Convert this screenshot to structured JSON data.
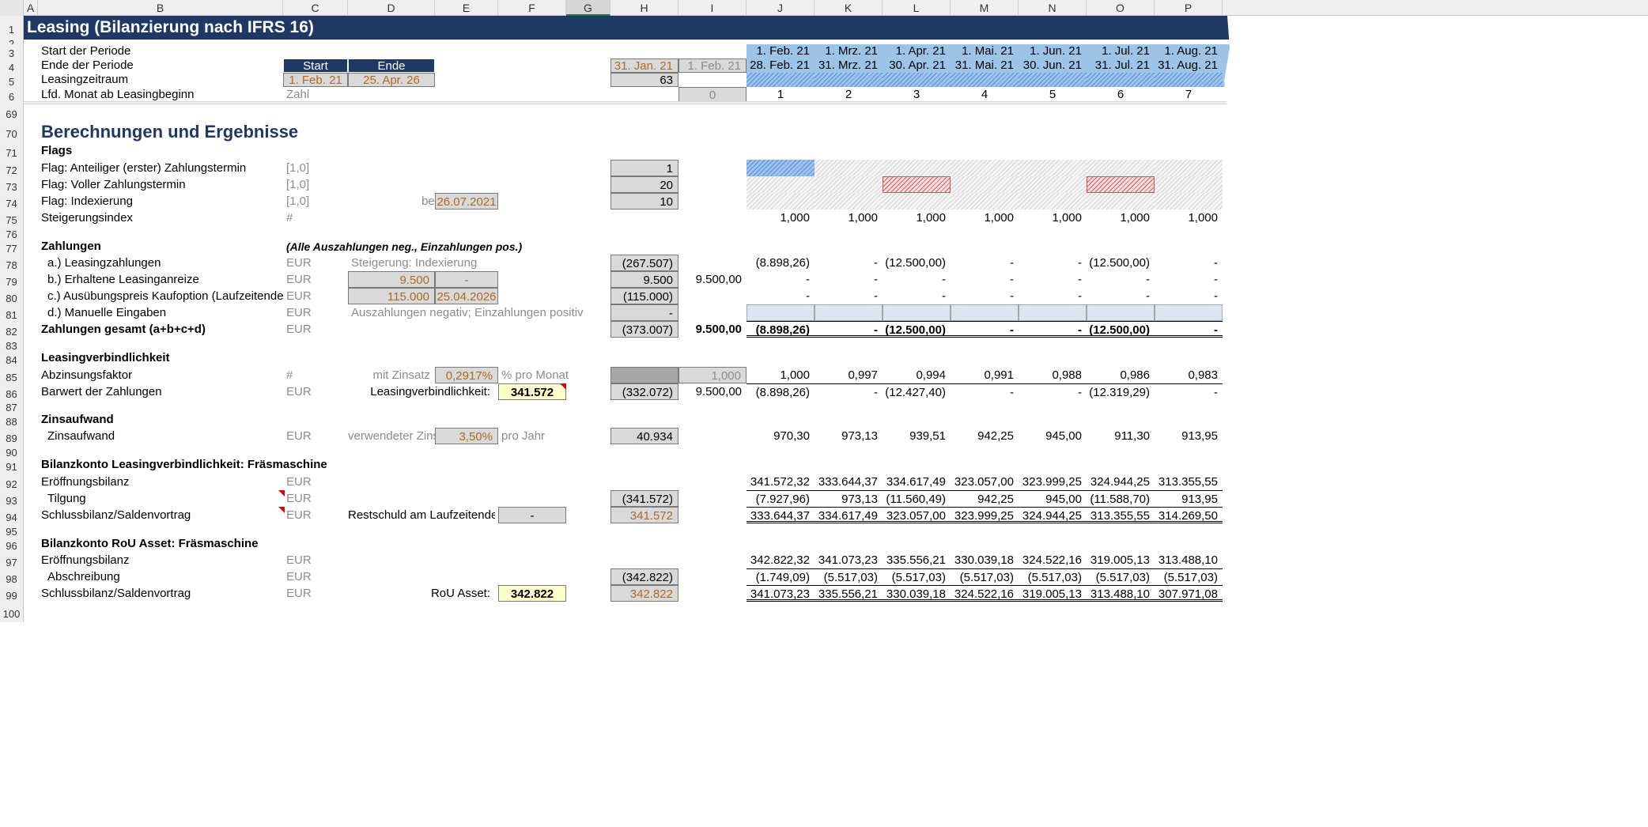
{
  "columns": [
    "A",
    "B",
    "C",
    "D",
    "E",
    "F",
    "G",
    "H",
    "I",
    "J",
    "K",
    "L",
    "M",
    "N",
    "O",
    "P"
  ],
  "title": "Leasing (Bilanzierung nach IFRS 16)",
  "rows": {
    "r1": "1",
    "r2": "2",
    "r3": "3",
    "r4": "4",
    "r5": "5",
    "r6": "6",
    "r69": "69",
    "r70": "70",
    "r71": "71",
    "r72": "72",
    "r73": "73",
    "r74": "74",
    "r75": "75",
    "r76": "76",
    "r77": "77",
    "r78": "78",
    "r79": "79",
    "r80": "80",
    "r81": "81",
    "r82": "82",
    "r83": "83",
    "r84": "84",
    "r85": "85",
    "r86": "86",
    "r87": "87",
    "r88": "88",
    "r89": "89",
    "r90": "90",
    "r91": "91",
    "r92": "92",
    "r93": "93",
    "r94": "94",
    "r95": "95",
    "r96": "96",
    "r97": "97",
    "r98": "98",
    "r99": "99",
    "r100": "100"
  },
  "header": {
    "start_label": "Start der Periode",
    "end_label": "Ende der Periode",
    "period_label": "Leasingzeitraum",
    "month_label": "Lfd. Monat ab Leasingbeginn",
    "start_btn": "Start",
    "end_btn": "Ende",
    "start_date": "1. Feb. 21",
    "end_date": "25. Apr. 26",
    "zahl": "Zahl",
    "h4": "31. Jan. 21",
    "i4": "1. Feb. 21",
    "h5": "63",
    "i6": "0"
  },
  "timeline": {
    "start": [
      "1. Feb. 21",
      "1. Mrz. 21",
      "1. Apr. 21",
      "1. Mai. 21",
      "1. Jun. 21",
      "1. Jul. 21",
      "1. Aug. 21"
    ],
    "end": [
      "28. Feb. 21",
      "31. Mrz. 21",
      "30. Apr. 21",
      "31. Mai. 21",
      "30. Jun. 21",
      "31. Jul. 21",
      "31. Aug. 21"
    ],
    "month": [
      "1",
      "2",
      "3",
      "4",
      "5",
      "6",
      "7"
    ]
  },
  "section_title": "Berechnungen und Ergebnisse",
  "flags": {
    "title": "Flags",
    "f1": "Flag: Anteiliger (erster) Zahlungstermin",
    "f2": "Flag: Voller Zahlungstermin",
    "f3": "Flag: Indexierung",
    "f4": "Steigerungsindex",
    "unit": "[1,0]",
    "hash": "#",
    "beginning": "beginnend ab",
    "begin_date": "26.07.2021",
    "h72": "1",
    "h73": "20",
    "h74": "10",
    "index": [
      "1,000",
      "1,000",
      "1,000",
      "1,000",
      "1,000",
      "1,000",
      "1,000"
    ]
  },
  "zahlungen": {
    "title": "Zahlungen",
    "note": "(Alle Auszahlungen neg., Einzahlungen pos.)",
    "a": "a.) Leasingzahlungen",
    "b": "b.) Erhaltene Leasinganreize",
    "c": "c.) Ausübungspreis Kaufoption (Laufzeitende)",
    "d": "d.) Manuelle Eingaben",
    "total": "Zahlungen gesamt (a+b+c+d)",
    "eur": "EUR",
    "steigerung": "Steigerung: Indexierung",
    "b_val": "9.500",
    "b_dash": "-",
    "c_val": "115.000",
    "c_date": "25.04.2026",
    "d_note": "Auszahlungen negativ; Einzahlungen positiv",
    "h78": "(267.507)",
    "h79": "9.500",
    "h80": "(115.000)",
    "h81": "-",
    "h82": "(373.007)",
    "i79": "9.500,00",
    "i82": "9.500,00",
    "row78": [
      "(8.898,26)",
      "-",
      "(12.500,00)",
      "-",
      "-",
      "(12.500,00)",
      "-"
    ],
    "row79": [
      "-",
      "-",
      "-",
      "-",
      "-",
      "-",
      "-"
    ],
    "row80": [
      "-",
      "-",
      "-",
      "-",
      "-",
      "-",
      "-"
    ],
    "row82": [
      "(8.898,26)",
      "-",
      "(12.500,00)",
      "-",
      "-",
      "(12.500,00)",
      "-"
    ]
  },
  "liab": {
    "title": "Leasingverbindlichkeit",
    "discount": "Abzinsungsfaktor",
    "pv": "Barwert der Zahlungen",
    "mit_zinsatz": "mit Zinsatz",
    "rate": "0,2917%",
    "pm": "% pro Monat",
    "lv_label": "Leasingverbindlichkeit:",
    "lv_val": "341.572",
    "i85": "1,000",
    "h86": "(332.072)",
    "i86": "9.500,00",
    "row85": [
      "1,000",
      "0,997",
      "0,994",
      "0,991",
      "0,988",
      "0,986",
      "0,983"
    ],
    "row86": [
      "(8.898,26)",
      "-",
      "(12.427,40)",
      "-",
      "-",
      "(12.319,29)",
      "-"
    ]
  },
  "interest": {
    "title": "Zinsaufwand",
    "label": "Zinsaufwand",
    "used": "verwendeter Zinsatz",
    "rate": "3,50%",
    "pa": "pro Jahr",
    "h89": "40.934",
    "row89": [
      "970,30",
      "973,13",
      "939,51",
      "942,25",
      "945,00",
      "911,30",
      "913,95"
    ]
  },
  "account1": {
    "title": "Bilanzkonto Leasingverbindlichkeit: Fräsmaschine",
    "open": "Eröffnungsbilanz",
    "tilgung": "Tilgung",
    "close": "Schlussbilanz/Saldenvortrag",
    "rest": "Restschuld am Laufzeitende:",
    "rest_val": "-",
    "h93": "(341.572)",
    "h94": "341.572",
    "row92": [
      "341.572,32",
      "333.644,37",
      "334.617,49",
      "323.057,00",
      "323.999,25",
      "324.944,25",
      "313.355,55"
    ],
    "row93": [
      "(7.927,96)",
      "973,13",
      "(11.560,49)",
      "942,25",
      "945,00",
      "(11.588,70)",
      "913,95"
    ],
    "row94": [
      "333.644,37",
      "334.617,49",
      "323.057,00",
      "323.999,25",
      "324.944,25",
      "313.355,55",
      "314.269,50"
    ]
  },
  "account2": {
    "title": "Bilanzkonto RoU Asset: Fräsmaschine",
    "open": "Eröffnungsbilanz",
    "abschreibung": "Abschreibung",
    "close": "Schlussbilanz/Saldenvortrag",
    "rou": "RoU Asset:",
    "rou_val": "342.822",
    "h98": "(342.822)",
    "h99": "342.822",
    "row97": [
      "342.822,32",
      "341.073,23",
      "335.556,21",
      "330.039,18",
      "324.522,16",
      "319.005,13",
      "313.488,10"
    ],
    "row98": [
      "(1.749,09)",
      "(5.517,03)",
      "(5.517,03)",
      "(5.517,03)",
      "(5.517,03)",
      "(5.517,03)",
      "(5.517,03)"
    ],
    "row99": [
      "341.073,23",
      "335.556,21",
      "330.039,18",
      "324.522,16",
      "319.005,13",
      "313.488,10",
      "307.971,08"
    ]
  },
  "colors": {
    "navy": "#1f3864",
    "title_blue": "#203764",
    "timeline_blue": "#9dc3e6"
  }
}
